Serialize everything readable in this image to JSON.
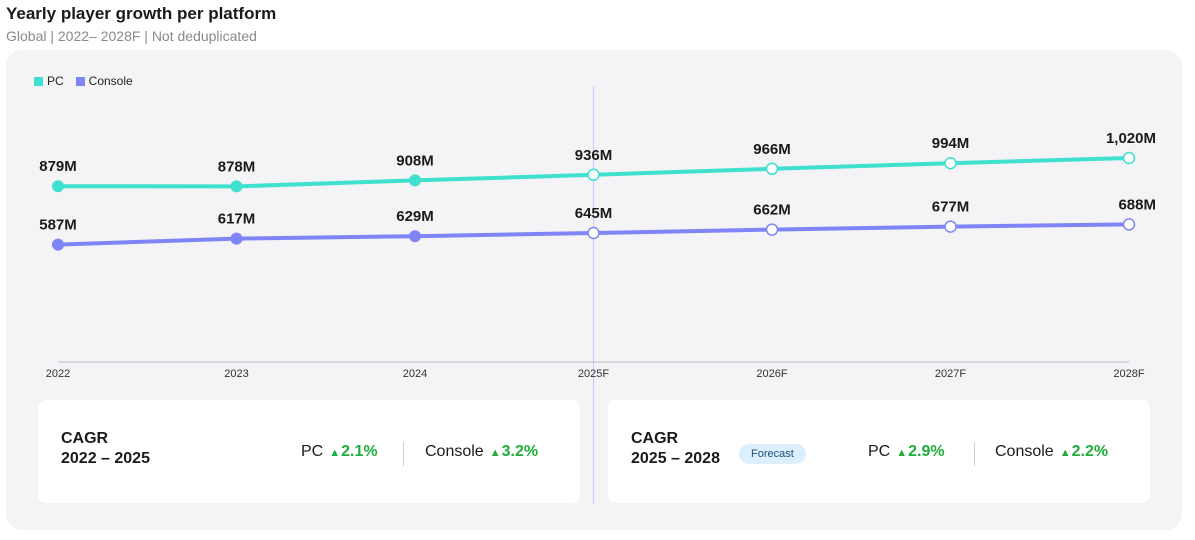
{
  "header": {
    "title": "Yearly player growth per platform",
    "subtitle": "Global | 2022– 2028F | Not deduplicated"
  },
  "colors": {
    "pc": "#3fe0cf",
    "console": "#7f84f6",
    "up": "#1fae3b",
    "forecast_line": "#c9cdf5"
  },
  "chart_data": {
    "type": "line",
    "categories": [
      "2022",
      "2023",
      "2024",
      "2025F",
      "2026F",
      "2027F",
      "2028F"
    ],
    "forecast_from_index": 3,
    "series": [
      {
        "name": "PC",
        "values": [
          879,
          878,
          908,
          936,
          966,
          994,
          1020
        ],
        "labels": [
          "879M",
          "878M",
          "908M",
          "936M",
          "966M",
          "994M",
          "1,020M"
        ]
      },
      {
        "name": "Console",
        "values": [
          587,
          617,
          629,
          645,
          662,
          677,
          688
        ],
        "labels": [
          "587M",
          "617M",
          "629M",
          "645M",
          "662M",
          "677M",
          "688M"
        ]
      }
    ],
    "ylim": [
      0,
      1165
    ],
    "grid": false,
    "legend": "top-left"
  },
  "cards": {
    "left": {
      "label": "CAGR",
      "range": "2022 – 2025",
      "pc_name": "PC",
      "pc_value": "2.1%",
      "console_name": "Console",
      "console_value": "3.2%"
    },
    "right": {
      "label": "CAGR",
      "range": "2025 – 2028",
      "badge": "Forecast",
      "pc_name": "PC",
      "pc_value": "2.9%",
      "console_name": "Console",
      "console_value": "2.2%"
    },
    "up_arrow": "▲"
  }
}
